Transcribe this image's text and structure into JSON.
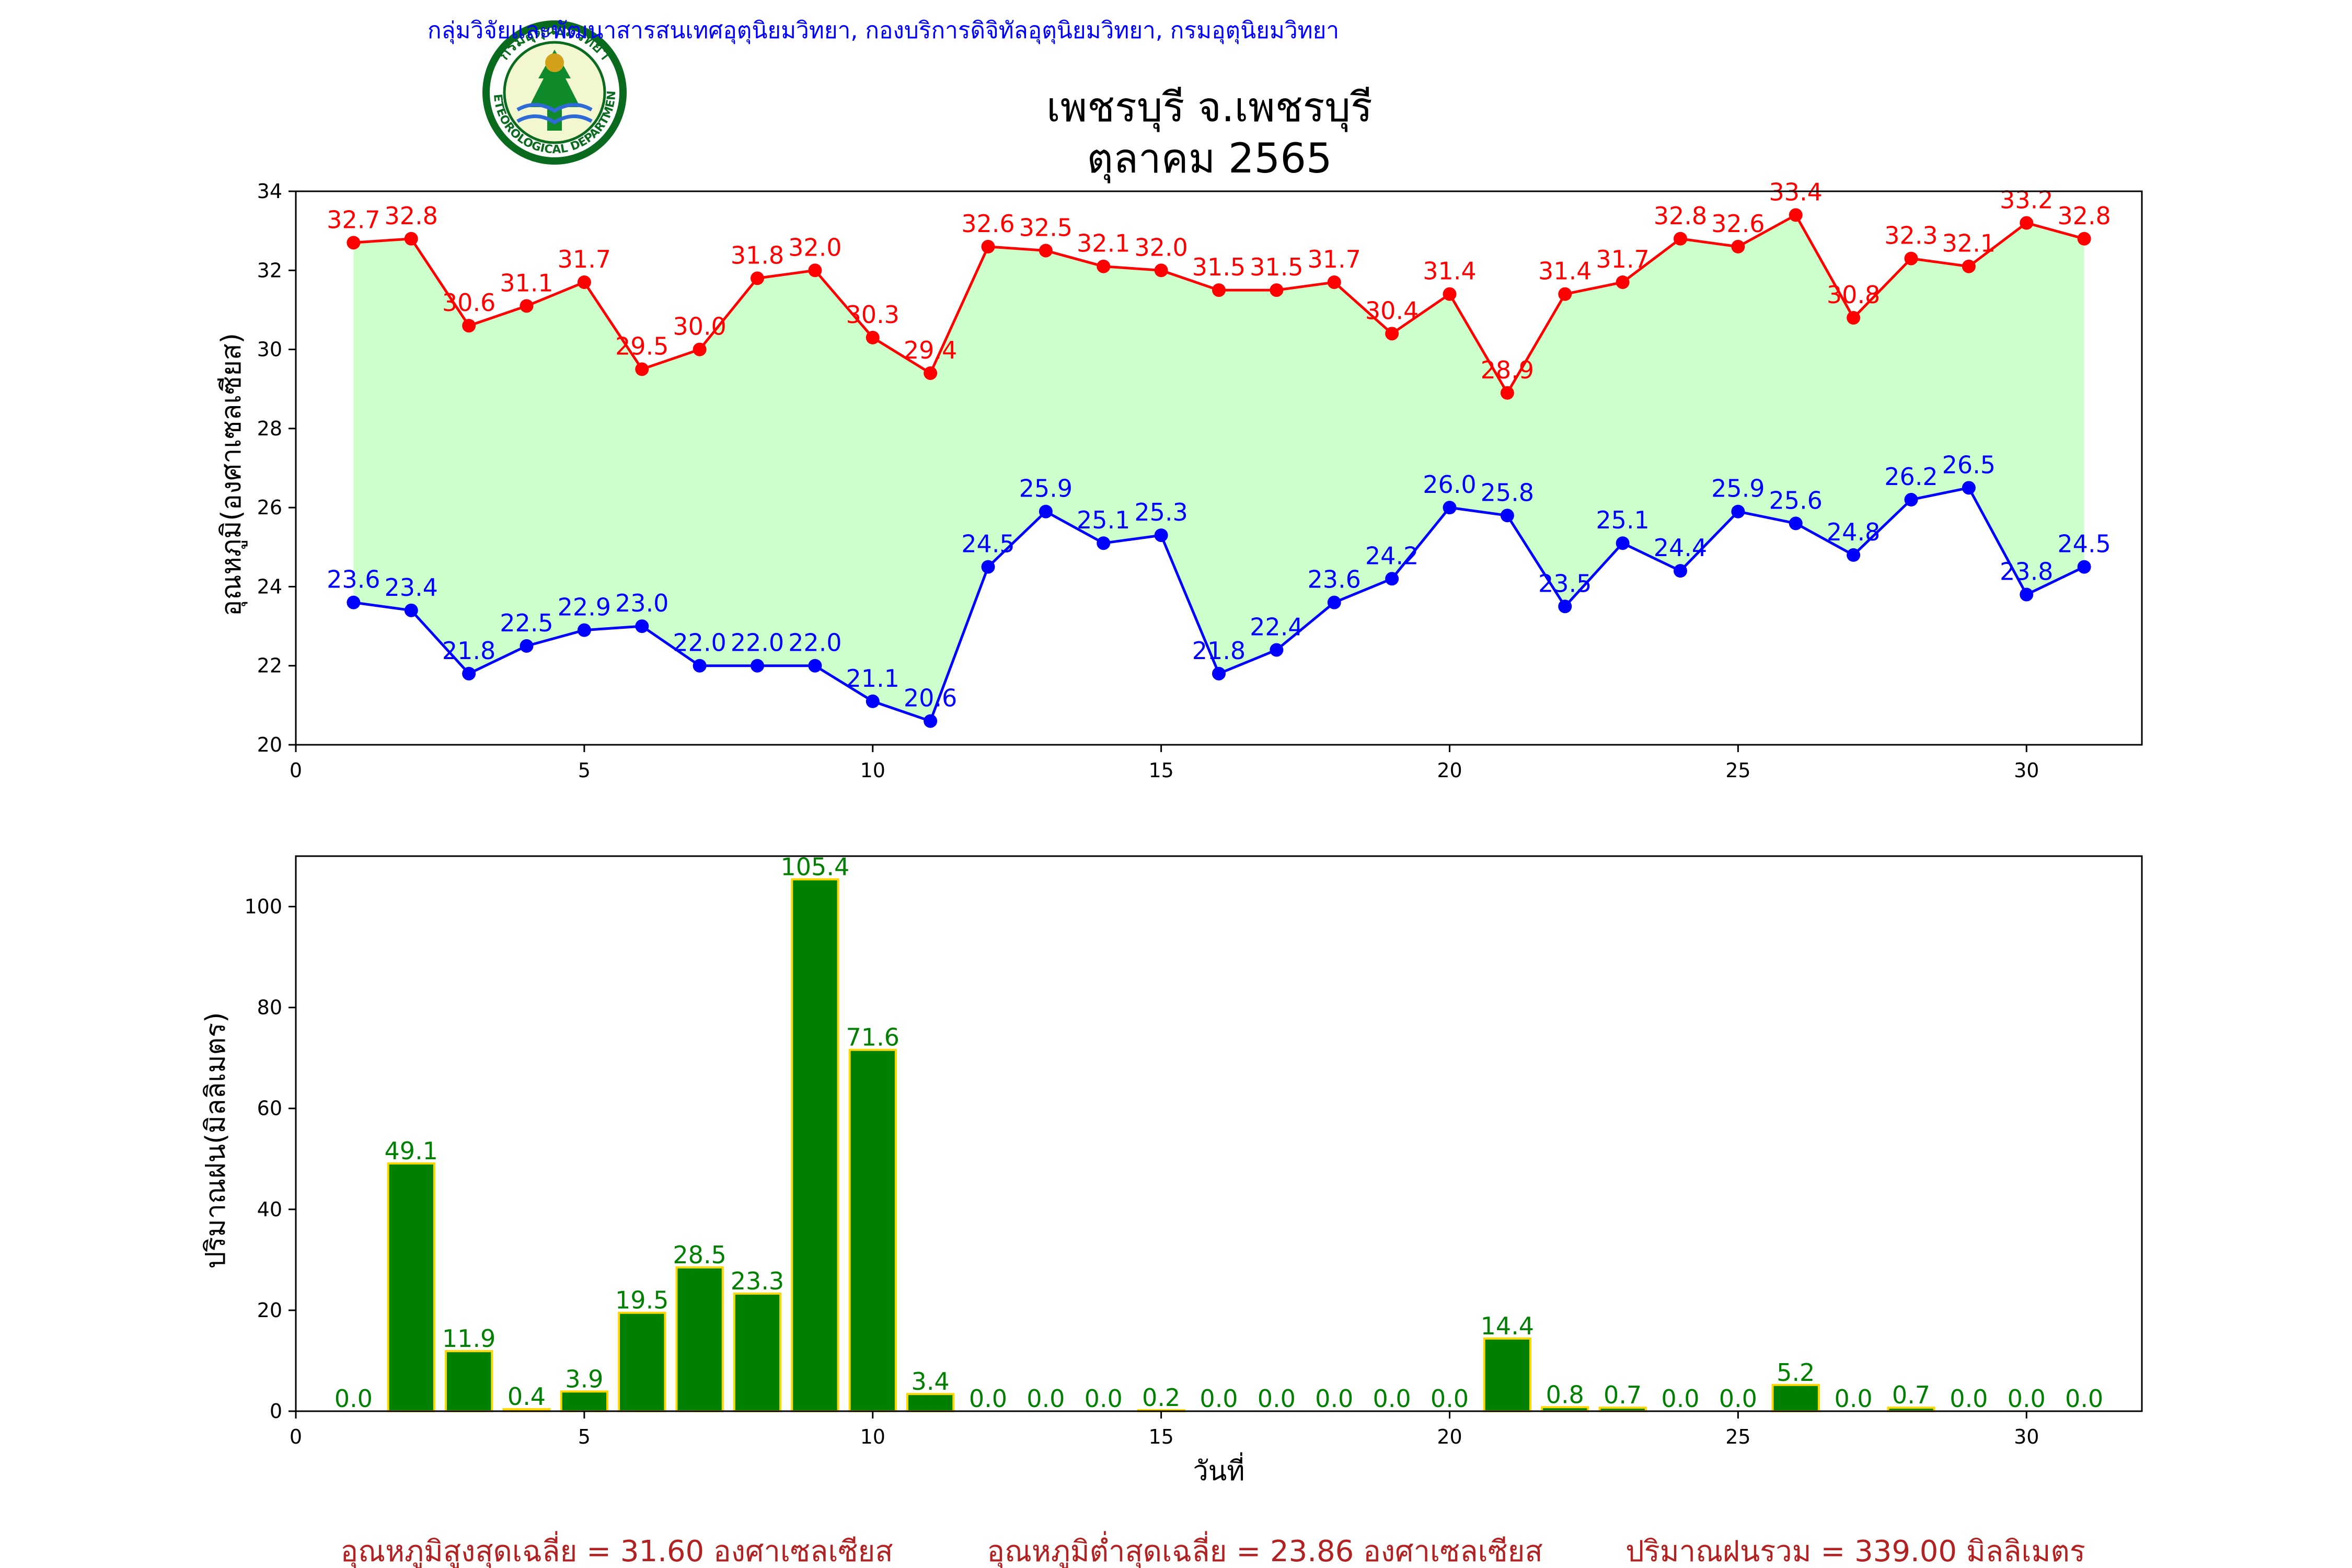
{
  "header": {
    "agency_line": "กลุ่มวิจัยและพัฒนาสารสนเทศอุตุนิยมวิทยา, กองบริการดิจิทัลอุตุนิยมวิทยา, กรมอุตุนิยมวิทยา",
    "title_line1": "เพชรบุรี จ.เพชรบุรี",
    "title_line2": "ตุลาคม 2565",
    "logo_text_top": "กรมอุตุนิยมวิทยา",
    "logo_text_bottom": "METEOROLOGICAL DEPARTMENT"
  },
  "colors": {
    "max_temp": "#ff0000",
    "min_temp": "#0000ff",
    "band_fill": "#ccffcc",
    "rain_bar": "#008000",
    "rain_edge": "#ffd700",
    "rain_label": "#008000",
    "agency_text": "#0000ff",
    "summary_text": "#b22222"
  },
  "chart_data": [
    {
      "type": "line",
      "ylabel": "อุณหภูมิ(องศาเซลเซียส)",
      "xlabel": "",
      "xlim": [
        0,
        32
      ],
      "ylim": [
        20,
        34
      ],
      "xticks": [
        0,
        5,
        10,
        15,
        20,
        25,
        30
      ],
      "yticks": [
        20,
        22,
        24,
        26,
        28,
        30,
        32,
        34
      ],
      "grid": false,
      "x": [
        1,
        2,
        3,
        4,
        5,
        6,
        7,
        8,
        9,
        10,
        11,
        12,
        13,
        14,
        15,
        16,
        17,
        18,
        19,
        20,
        21,
        22,
        23,
        24,
        25,
        26,
        27,
        28,
        29,
        30,
        31
      ],
      "series": [
        {
          "key": "max",
          "values": [
            32.7,
            32.8,
            30.6,
            31.1,
            31.7,
            29.5,
            30.0,
            31.8,
            32.0,
            30.3,
            29.4,
            32.6,
            32.5,
            32.1,
            32.0,
            31.5,
            31.5,
            31.7,
            30.4,
            31.4,
            28.9,
            31.4,
            31.7,
            32.8,
            32.6,
            33.4,
            30.8,
            32.3,
            32.1,
            33.2,
            32.8
          ]
        },
        {
          "key": "min",
          "values": [
            23.6,
            23.4,
            21.8,
            22.5,
            22.9,
            23.0,
            22.0,
            22.0,
            22.0,
            21.1,
            20.6,
            24.5,
            25.9,
            25.1,
            25.3,
            21.8,
            22.4,
            23.6,
            24.2,
            26.0,
            25.8,
            23.5,
            25.1,
            24.4,
            25.9,
            25.6,
            24.8,
            26.2,
            26.5,
            23.8,
            24.5
          ]
        }
      ]
    },
    {
      "type": "bar",
      "ylabel": "ปริมาณฝน(มิลลิเมตร)",
      "xlabel": "วันที่",
      "xlim": [
        0,
        32
      ],
      "ylim": [
        0,
        110
      ],
      "xticks": [
        0,
        5,
        10,
        15,
        20,
        25,
        30
      ],
      "yticks": [
        0,
        20,
        40,
        60,
        80,
        100
      ],
      "grid": false,
      "x": [
        1,
        2,
        3,
        4,
        5,
        6,
        7,
        8,
        9,
        10,
        11,
        12,
        13,
        14,
        15,
        16,
        17,
        18,
        19,
        20,
        21,
        22,
        23,
        24,
        25,
        26,
        27,
        28,
        29,
        30,
        31
      ],
      "values": [
        0.0,
        49.1,
        11.9,
        0.4,
        3.9,
        19.5,
        28.5,
        23.3,
        105.4,
        71.6,
        3.4,
        0.0,
        0.0,
        0.0,
        0.2,
        0.0,
        0.0,
        0.0,
        0.0,
        0.0,
        14.4,
        0.8,
        0.7,
        0.0,
        0.0,
        5.2,
        0.0,
        0.7,
        0.0,
        0.0,
        0.0
      ]
    }
  ],
  "summary": {
    "avg_max": "อุณหภูมิสูงสุดเฉลี่ย = 31.60 องศาเซลเซียส",
    "avg_min": "อุณหภูมิต่ำสุดเฉลี่ย = 23.86 องศาเซลเซียส",
    "total_rain": "ปริมาณฝนรวม = 339.00 มิลลิเมตร"
  }
}
